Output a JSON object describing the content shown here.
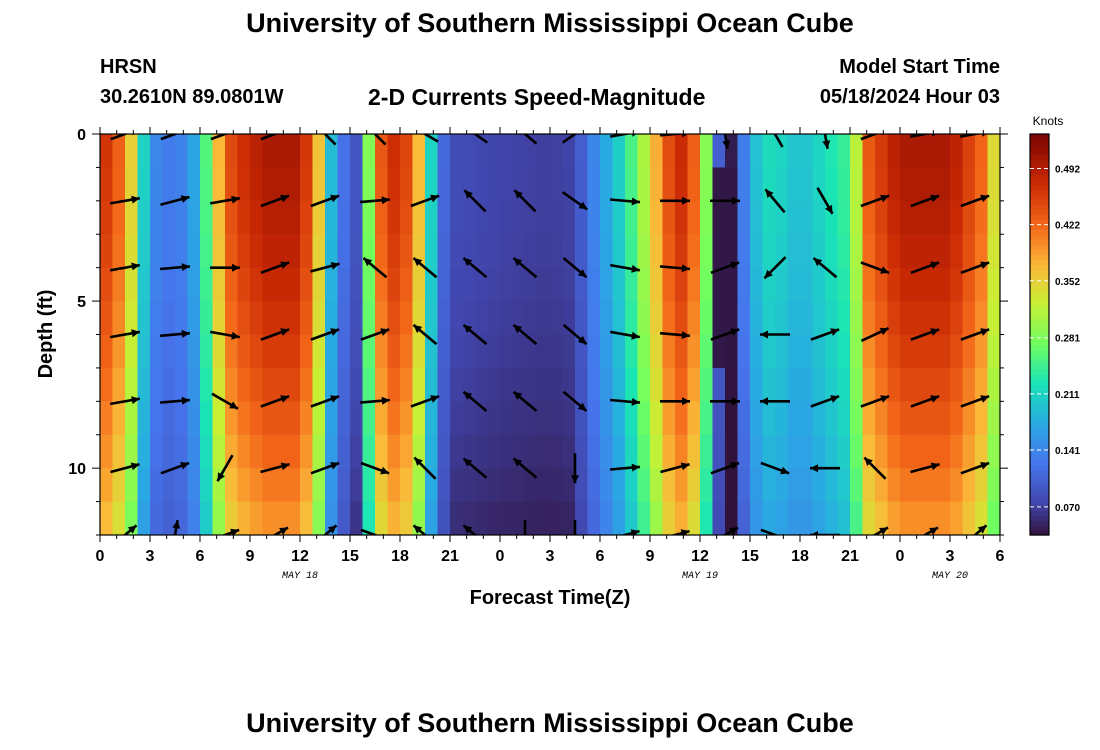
{
  "header": {
    "title": "University of Southern Mississippi Ocean Cube",
    "station": "HRSN",
    "coords": "30.2610N  89.0801W",
    "plot_title": "2-D Currents Speed-Magnitude",
    "model_start_label": "Model Start Time",
    "model_start_value": "05/18/2024 Hour 03"
  },
  "footer": {
    "title": "University of Southern Mississippi Ocean Cube"
  },
  "chart_data": {
    "type": "heatmap",
    "title": "2-D Currents Speed-Magnitude",
    "xlabel": "Forecast Time(Z)",
    "ylabel": "Depth (ft)",
    "x_tick_labels": [
      "0",
      "3",
      "6",
      "9",
      "12",
      "15",
      "18",
      "21",
      "0",
      "3",
      "6",
      "9",
      "12",
      "15",
      "18",
      "21",
      "0",
      "3",
      "6"
    ],
    "x_hours": [
      0,
      54
    ],
    "date_labels": [
      {
        "label": "MAY 18",
        "hour": 12
      },
      {
        "label": "MAY 19",
        "hour": 36
      },
      {
        "label": "MAY 20",
        "hour": 51
      }
    ],
    "y_ticks": [
      0,
      5,
      10
    ],
    "ylim": [
      0,
      12
    ],
    "y_inverted": true,
    "colorbar": {
      "label": "Knots",
      "ticks": [
        0.07,
        0.141,
        0.211,
        0.281,
        0.352,
        0.422,
        0.492
      ],
      "tick_labels": [
        "0.070",
        "0.141",
        "0.211",
        "0.281",
        "0.352",
        "0.422",
        "0.492"
      ],
      "range": [
        0.035,
        0.535
      ]
    },
    "speed_profile_by_hour": [
      [
        0,
        0.48
      ],
      [
        1,
        0.44
      ],
      [
        2,
        0.34
      ],
      [
        2.5,
        0.23
      ],
      [
        3,
        0.15
      ],
      [
        4,
        0.13
      ],
      [
        5,
        0.14
      ],
      [
        6,
        0.19
      ],
      [
        6.5,
        0.28
      ],
      [
        7,
        0.36
      ],
      [
        8,
        0.46
      ],
      [
        10,
        0.5
      ],
      [
        12,
        0.5
      ],
      [
        13,
        0.4
      ],
      [
        13.5,
        0.25
      ],
      [
        14,
        0.17
      ],
      [
        14.5,
        0.13
      ],
      [
        15,
        0.1
      ],
      [
        15.5,
        0.09
      ],
      [
        16,
        0.26
      ],
      [
        17,
        0.46
      ],
      [
        18,
        0.48
      ],
      [
        19,
        0.4
      ],
      [
        19.5,
        0.28
      ],
      [
        20,
        0.19
      ],
      [
        20.5,
        0.12
      ],
      [
        21,
        0.085
      ],
      [
        24,
        0.075
      ],
      [
        27,
        0.07
      ],
      [
        28.5,
        0.075
      ],
      [
        29,
        0.11
      ],
      [
        30,
        0.16
      ],
      [
        31,
        0.2
      ],
      [
        32,
        0.26
      ],
      [
        33,
        0.34
      ],
      [
        34,
        0.44
      ],
      [
        35,
        0.48
      ],
      [
        36,
        0.4
      ],
      [
        36.5,
        0.25
      ],
      [
        37,
        0.12
      ],
      [
        37.5,
        0.05
      ],
      [
        38,
        0.04
      ],
      [
        38.5,
        0.12
      ],
      [
        39,
        0.18
      ],
      [
        40,
        0.22
      ],
      [
        41,
        0.21
      ],
      [
        42,
        0.19
      ],
      [
        45,
        0.25
      ],
      [
        46,
        0.43
      ],
      [
        48,
        0.5
      ],
      [
        51,
        0.5
      ],
      [
        53,
        0.42
      ],
      [
        54,
        0.3
      ]
    ],
    "vector_rows_depth_ft": [
      0,
      2,
      4,
      6,
      8,
      10,
      12
    ],
    "vector_cols_hour": [
      1.5,
      4.5,
      7.5,
      10.5,
      13.5,
      16.5,
      19.5,
      22.5,
      25.5,
      28.5,
      31.5,
      34.5,
      37.5,
      40.5,
      43.5,
      46.5,
      49.5,
      52.5
    ],
    "vector_angles_deg": [
      [
        -20,
        -20,
        -20,
        -20,
        -135,
        -135,
        -150,
        -145,
        -140,
        -35,
        -10,
        -5,
        80,
        -120,
        80,
        -20,
        -10,
        -10
      ],
      [
        -10,
        -15,
        -10,
        -20,
        -20,
        -5,
        -20,
        -135,
        -135,
        35,
        5,
        0,
        0,
        -130,
        60,
        -20,
        -20,
        -20
      ],
      [
        -10,
        -5,
        0,
        -20,
        -15,
        -140,
        -140,
        -140,
        -140,
        40,
        10,
        5,
        -20,
        135,
        -140,
        20,
        -20,
        -20
      ],
      [
        -10,
        -5,
        10,
        -20,
        -20,
        -20,
        -140,
        -140,
        -140,
        40,
        10,
        5,
        -20,
        -180,
        -20,
        -25,
        -20,
        -20
      ],
      [
        -10,
        -5,
        30,
        -20,
        -20,
        -5,
        -20,
        -140,
        -140,
        40,
        5,
        0,
        0,
        -180,
        -20,
        -20,
        -20,
        -20
      ],
      [
        -15,
        -20,
        120,
        -15,
        -20,
        20,
        -135,
        -140,
        -140,
        90,
        -5,
        -15,
        -20,
        20,
        -180,
        -135,
        -15,
        -20
      ],
      [
        -40,
        -80,
        -20,
        -30,
        -40,
        20,
        -140,
        -140,
        90,
        90,
        -15,
        -15,
        -30,
        20,
        -180,
        -30,
        -30,
        -40
      ]
    ],
    "grid": false
  }
}
